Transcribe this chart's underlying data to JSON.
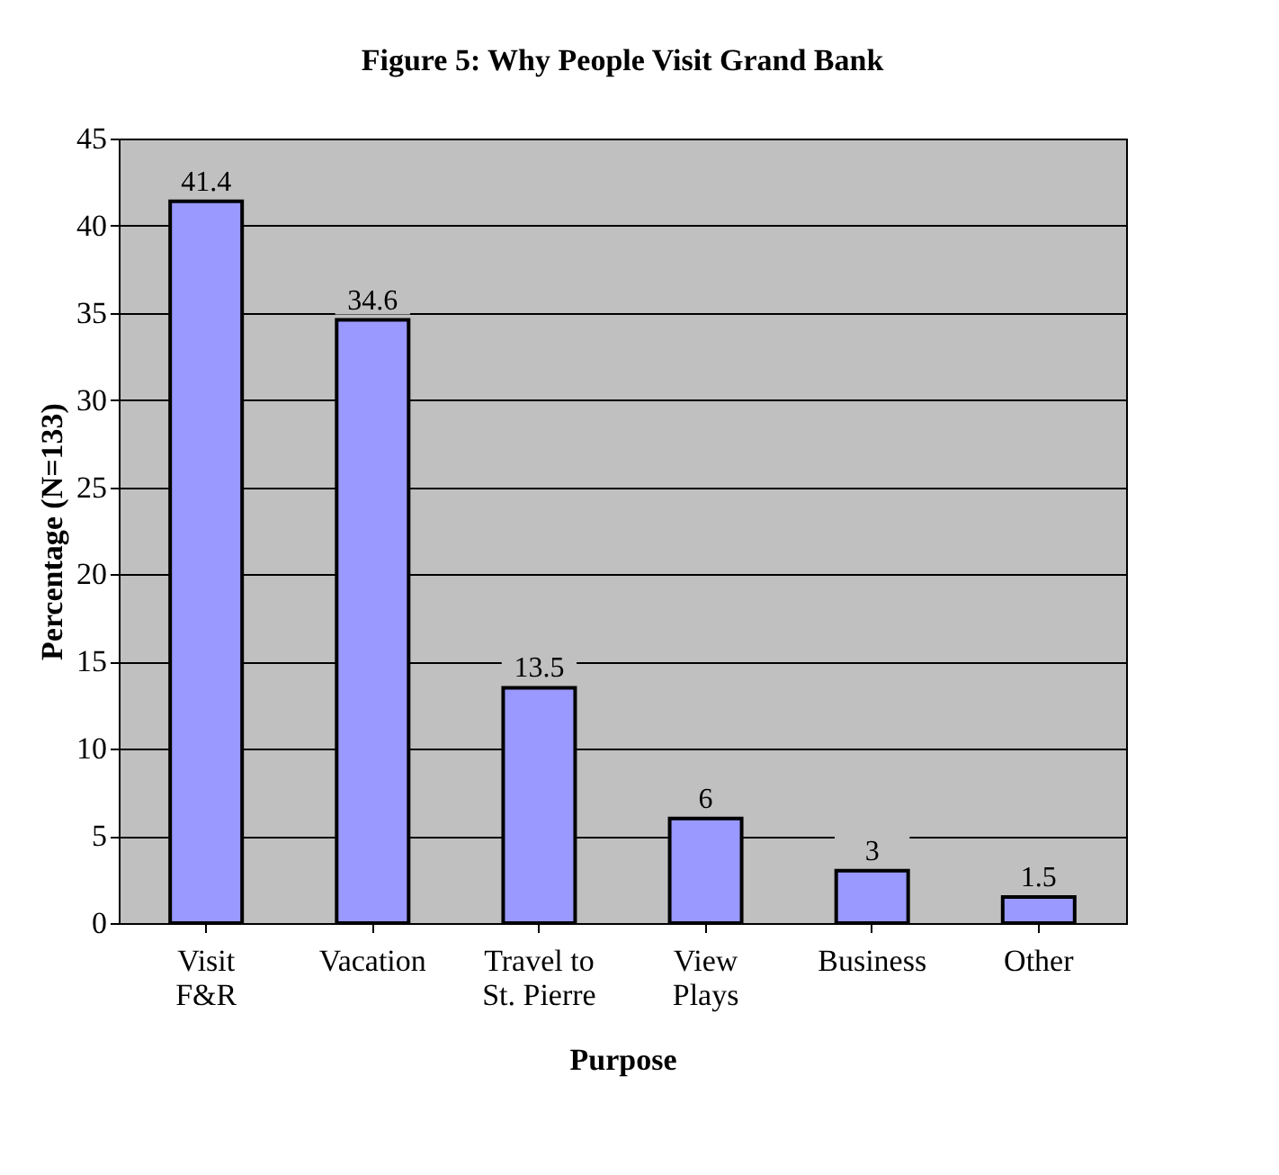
{
  "chart_data": {
    "type": "bar",
    "title": "Figure 5: Why People Visit Grand Bank",
    "categories": [
      "Visit\nF&R",
      "Vacation",
      "Travel to\nSt. Pierre",
      "View\nPlays",
      "Business",
      "Other"
    ],
    "values": [
      41.4,
      34.6,
      13.5,
      6,
      3,
      1.5
    ],
    "color": "#9999ff",
    "xlabel": "Purpose",
    "ylabel": "Percentage (N=133)",
    "ylim": [
      0,
      45
    ],
    "yticks": [
      0,
      5,
      10,
      15,
      20,
      25,
      30,
      35,
      40,
      45
    ],
    "grid": "y",
    "data_labels": true
  }
}
